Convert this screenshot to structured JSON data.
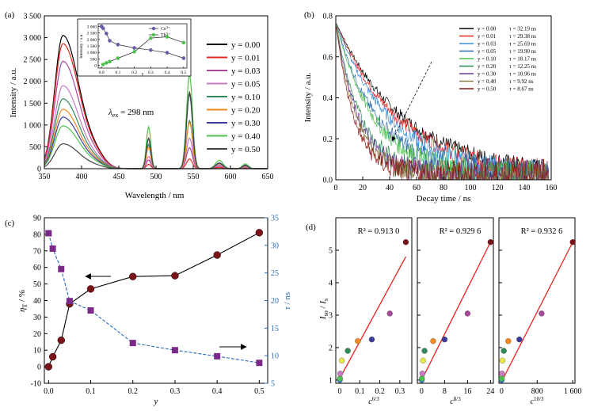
{
  "chart_data": [
    {
      "id": "a",
      "panel_label": "(a)",
      "type": "line",
      "xlabel": "Wavelength / nm",
      "ylabel": "Intensity / a.u.",
      "xlim": [
        350,
        650
      ],
      "ylim": [
        0,
        3500
      ],
      "xticks": [
        350,
        400,
        450,
        500,
        550,
        600,
        650
      ],
      "yticks": [
        0,
        500,
        1000,
        1500,
        2000,
        2500,
        3000,
        3500
      ],
      "ytick_labels": [
        "0",
        "500",
        "1 000",
        "1 500",
        "2 000",
        "2 500",
        "3 000",
        "3 500"
      ],
      "annotation": {
        "text": "λex = 298 nm",
        "main": "λ",
        "sub": "ex",
        "rest": " = 298 nm"
      },
      "legend_position": "right",
      "peak_positions_nm": [
        375,
        490,
        545,
        585,
        620
      ],
      "series": [
        {
          "name": "y = 0.00",
          "color": "#000000",
          "peaks": [
            3050,
            0,
            0,
            0,
            0
          ]
        },
        {
          "name": "y = 0.01",
          "color": "#e8251f",
          "peaks": [
            2860,
            100,
            220,
            30,
            15
          ]
        },
        {
          "name": "y = 0.03",
          "color": "#a8489b",
          "peaks": [
            2460,
            200,
            480,
            60,
            30
          ]
        },
        {
          "name": "y = 0.05",
          "color": "#c77bc0",
          "peaks": [
            1900,
            280,
            700,
            80,
            40
          ]
        },
        {
          "name": "y = 0.10",
          "color": "#2e8b57",
          "peaks": [
            1600,
            560,
            1100,
            120,
            70
          ]
        },
        {
          "name": "y = 0.20",
          "color": "#f08a24",
          "peaks": [
            1360,
            500,
            1060,
            110,
            60
          ]
        },
        {
          "name": "y = 0.30",
          "color": "#3b3b9b",
          "peaks": [
            1180,
            700,
            1700,
            130,
            80
          ]
        },
        {
          "name": "y = 0.40",
          "color": "#4cc24c",
          "peaks": [
            980,
            960,
            2150,
            190,
            110
          ]
        },
        {
          "name": "y = 0.50",
          "color": "#444444",
          "peaks": [
            570,
            690,
            1750,
            120,
            70
          ]
        }
      ],
      "inset": {
        "xlabel": "y",
        "ylabel": "Intensity / a.u.",
        "xlim": [
          0,
          0.5
        ],
        "ylim": [
          0,
          3000
        ],
        "xticks": [
          0.0,
          0.1,
          0.2,
          0.3,
          0.4,
          0.5
        ],
        "yticks": [
          0,
          500,
          1000,
          1500,
          2000,
          2500,
          3000
        ],
        "ytick_labels": [
          "0",
          "500",
          "1 000",
          "1 500",
          "2 000",
          "2 500",
          "3 000"
        ],
        "legend": [
          {
            "main": "Ce",
            "sup": "3+",
            "color": "#6a5aa8"
          },
          {
            "main": "Tb",
            "sup": "3+",
            "color": "#4cc24c"
          }
        ],
        "series": [
          {
            "name": "Ce3+",
            "color": "#6a5aa8",
            "x": [
              0.0,
              0.01,
              0.03,
              0.05,
              0.1,
              0.2,
              0.3,
              0.4,
              0.5
            ],
            "y": [
              3000,
              2850,
              2450,
              1900,
              1600,
              1350,
              1180,
              980,
              560
            ]
          },
          {
            "name": "Tb3+",
            "color": "#4cc24c",
            "x": [
              0.01,
              0.03,
              0.05,
              0.1,
              0.2,
              0.3,
              0.4,
              0.5
            ],
            "y": [
              80,
              200,
              300,
              560,
              1050,
              2100,
              2200,
              1750
            ]
          }
        ]
      }
    },
    {
      "id": "b",
      "panel_label": "(b)",
      "type": "line",
      "xlabel": "Decay time / ns",
      "ylabel": "Intensity / a.u.",
      "xlim": [
        0,
        160
      ],
      "ylim": [
        0,
        0.8
      ],
      "xticks": [
        0,
        20,
        40,
        60,
        80,
        100,
        120,
        140,
        160
      ],
      "yticks": [
        0.0,
        0.2,
        0.4,
        0.6,
        0.8
      ],
      "ytick_labels": [
        "0.0",
        "0.2",
        "0.4",
        "0.6",
        "0.8"
      ],
      "legend_position": "top-right",
      "series": [
        {
          "name": "y = 0.00",
          "tau_label": "τ = 32.19 ns",
          "tau": 32.19,
          "color": "#000000"
        },
        {
          "name": "y = 0.01",
          "tau_label": "τ = 29.38 ns",
          "tau": 29.38,
          "color": "#e8251f"
        },
        {
          "name": "y = 0.03",
          "tau_label": "τ = 25.69 ns",
          "tau": 25.69,
          "color": "#3b8fd6"
        },
        {
          "name": "y = 0.05",
          "tau_label": "τ = 19.90 ns",
          "tau": 19.9,
          "color": "#2a6aa8"
        },
        {
          "name": "y = 0.10",
          "tau_label": "τ = 18.17 ns",
          "tau": 18.17,
          "color": "#4cc24c"
        },
        {
          "name": "y = 0.20",
          "tau_label": "τ = 12.25 ns",
          "tau": 12.25,
          "color": "#2e8b57"
        },
        {
          "name": "y = 0.30",
          "tau_label": "τ = 10.96 ns",
          "tau": 10.96,
          "color": "#6a3d9a"
        },
        {
          "name": "y = 0.40",
          "tau_label": "τ = 9.92 ns",
          "tau": 9.92,
          "color": "#8c7a40"
        },
        {
          "name": "y = 0.50",
          "tau_label": "τ = 8.67 ns",
          "tau": 8.67,
          "color": "#8b1a1a"
        }
      ]
    },
    {
      "id": "c",
      "panel_label": "(c)",
      "type": "scatter",
      "xlabel": "y",
      "ylabel_left": "ηT / %",
      "ylabel_right": "τ / ns",
      "xlim": [
        -0.01,
        0.52
      ],
      "ylim_left": [
        -10,
        90
      ],
      "ylim_right": [
        5,
        35
      ],
      "xticks": [
        0.0,
        0.1,
        0.2,
        0.3,
        0.4,
        0.5
      ],
      "yticks_left": [
        -10,
        0,
        10,
        20,
        30,
        40,
        50,
        60,
        70,
        80,
        90
      ],
      "yticks_right": [
        5,
        10,
        15,
        20,
        25,
        30,
        35
      ],
      "series": [
        {
          "name": "ηT",
          "axis": "left",
          "color": "#7b1418",
          "marker": "circle",
          "x": [
            0.0,
            0.01,
            0.03,
            0.05,
            0.1,
            0.2,
            0.3,
            0.4,
            0.5
          ],
          "y": [
            0,
            6,
            16,
            38,
            47,
            54.5,
            55,
            67.5,
            81
          ]
        },
        {
          "name": "τ",
          "axis": "right",
          "color": "#7b2a8a",
          "line_color": "#2a6ab8",
          "marker": "square",
          "x": [
            0.0,
            0.01,
            0.03,
            0.05,
            0.1,
            0.2,
            0.3,
            0.4,
            0.5
          ],
          "y": [
            32.2,
            29.4,
            25.7,
            19.9,
            18.2,
            12.3,
            11.0,
            9.9,
            8.7
          ]
        }
      ]
    },
    {
      "id": "d",
      "panel_label": "(d)",
      "type": "scatter",
      "ylabel": "Iso / Is",
      "ylim": [
        0.9,
        6
      ],
      "yticks": [
        1,
        2,
        3,
        4,
        5
      ],
      "subplots": [
        {
          "xlabel": "c^(6/3)",
          "xlim": [
            -0.02,
            0.36
          ],
          "xticks": [
            0.0,
            0.1,
            0.2,
            0.3
          ],
          "xtick_labels": [
            "0",
            "0.1",
            "0.2",
            "0.3"
          ],
          "r2_label": "R² = 0.913 0",
          "fit": [
            [
              0.0,
              1.05
            ],
            [
              0.33,
              4.8
            ]
          ],
          "x": [
            0.0001,
            0.0009,
            0.0025,
            0.01,
            0.04,
            0.09,
            0.16,
            0.25,
            0.33
          ],
          "y": [
            1.0,
            1.05,
            1.2,
            1.6,
            1.9,
            2.2,
            2.25,
            3.05,
            5.25
          ]
        },
        {
          "xlabel": "c^(8/3)",
          "xlim": [
            -1.5,
            25
          ],
          "xticks": [
            0,
            8,
            16,
            24
          ],
          "xtick_labels": [
            "0",
            "8",
            "16",
            "24"
          ],
          "r2_label": "R² = 0.929 6",
          "fit": [
            [
              0.0,
              1.0
            ],
            [
              24,
              5.25
            ]
          ],
          "x": [
            0.03,
            0.1,
            0.25,
            0.5,
            1.0,
            4.0,
            8.0,
            16.0,
            24.0
          ],
          "y": [
            1.0,
            1.05,
            1.2,
            1.6,
            1.9,
            2.2,
            2.25,
            3.05,
            5.25
          ]
        },
        {
          "xlabel": "c^(10/3)",
          "xlim": [
            -60,
            1650
          ],
          "xticks": [
            0,
            800,
            1600
          ],
          "xtick_labels": [
            "0",
            "800",
            "1 600"
          ],
          "r2_label": "R² = 0.932 6",
          "fit": [
            [
              0.0,
              0.95
            ],
            [
              1600,
              5.25
            ]
          ],
          "x": [
            1,
            3,
            8,
            20,
            50,
            150,
            400,
            900,
            1600
          ],
          "y": [
            1.0,
            1.05,
            1.2,
            1.6,
            1.9,
            2.2,
            2.25,
            3.05,
            5.25
          ]
        }
      ],
      "point_colors": [
        "#3b8fd6",
        "#4cc24c",
        "#c77bc0",
        "#e8e84c",
        "#2e8b57",
        "#f08a24",
        "#3b3b9b",
        "#a8489b",
        "#7b1418"
      ]
    }
  ]
}
